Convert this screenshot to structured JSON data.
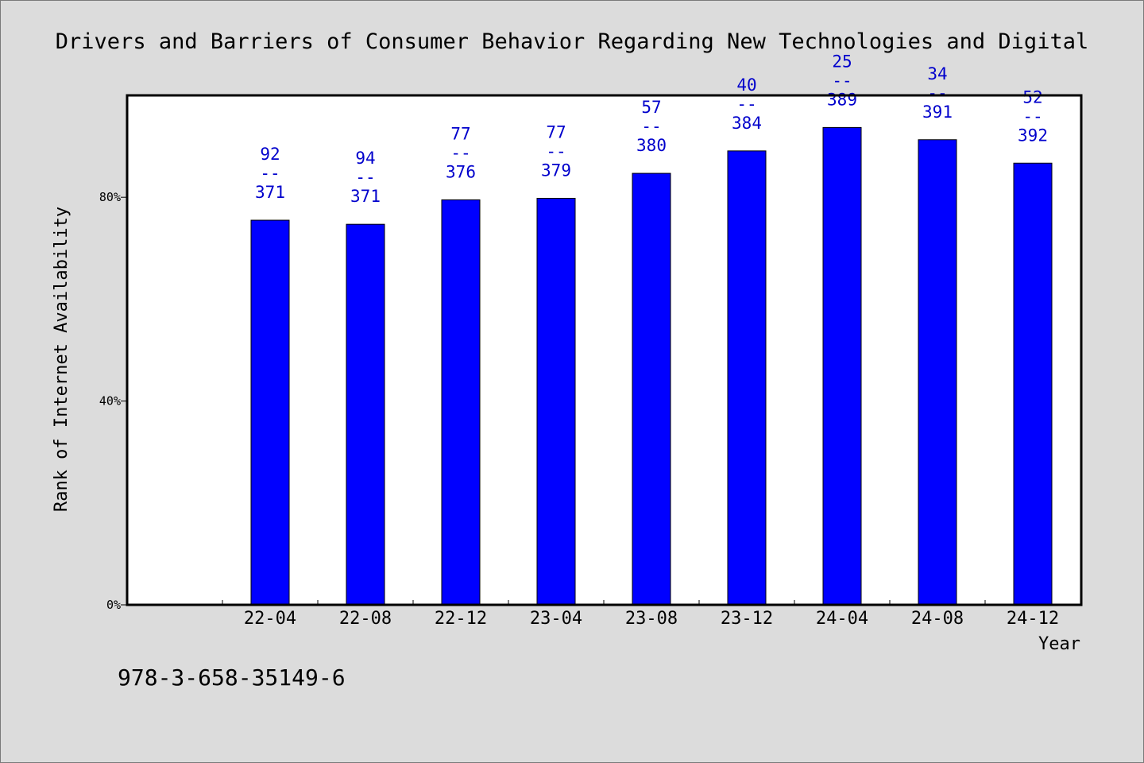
{
  "chart_data": {
    "type": "bar",
    "title": "Drivers and Barriers of Consumer Behavior Regarding New Technologies and Digital",
    "xlabel": "Year",
    "ylabel": "Rank of Internet Availability",
    "categories": [
      "22-04",
      "22-08",
      "22-12",
      "23-04",
      "23-08",
      "23-12",
      "24-04",
      "24-08",
      "24-12"
    ],
    "values": [
      75.5,
      74.7,
      79.5,
      79.8,
      84.7,
      89.1,
      93.7,
      91.3,
      86.7
    ],
    "data_labels": [
      {
        "top": "92",
        "sep": "--",
        "bottom": "371"
      },
      {
        "top": "94",
        "sep": "--",
        "bottom": "371"
      },
      {
        "top": "77",
        "sep": "--",
        "bottom": "376"
      },
      {
        "top": "77",
        "sep": "--",
        "bottom": "379"
      },
      {
        "top": "57",
        "sep": "--",
        "bottom": "380"
      },
      {
        "top": "40",
        "sep": "--",
        "bottom": "384"
      },
      {
        "top": "25",
        "sep": "--",
        "bottom": "389"
      },
      {
        "top": "34",
        "sep": "--",
        "bottom": "391"
      },
      {
        "top": "52",
        "sep": "--",
        "bottom": "392"
      }
    ],
    "ylim": [
      0,
      100
    ],
    "yticks": [
      0,
      40,
      80
    ],
    "ytick_labels": [
      "0%",
      "40%",
      "80%"
    ],
    "grid": false,
    "bar_color": "#0000ff",
    "label_color": "#0000cc",
    "background_color": "#dcdcdc",
    "plot_background": "#ffffff"
  },
  "footer": {
    "text": "978-3-658-35149-6"
  }
}
